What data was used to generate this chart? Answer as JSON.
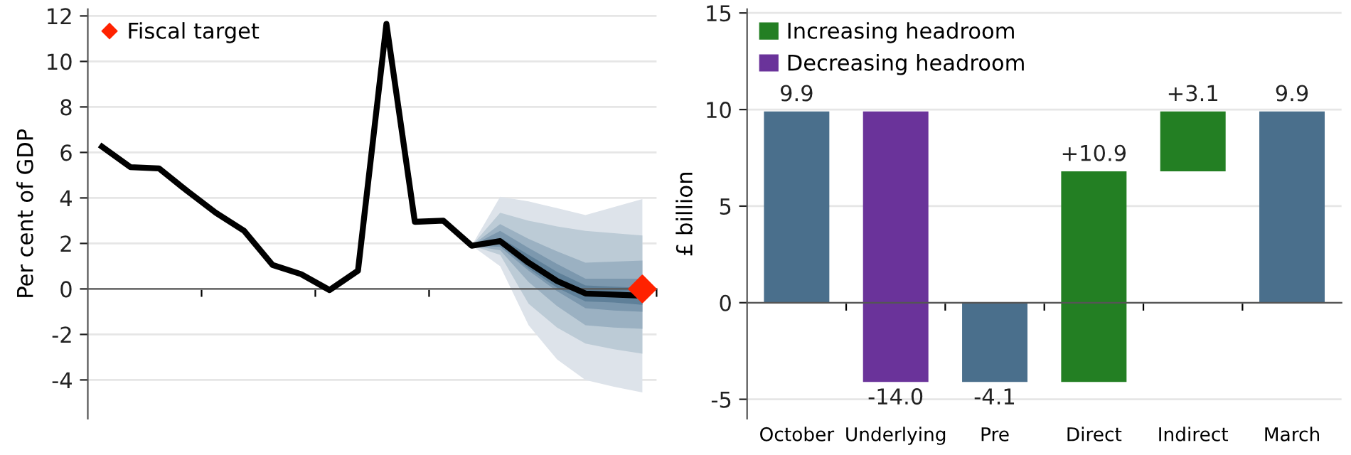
{
  "chart_data": [
    {
      "type": "line",
      "ylabel": "Per cent of GDP",
      "categories": [
        null,
        null,
        null,
        null,
        null,
        null,
        null,
        null,
        null,
        null,
        null,
        null,
        null,
        null,
        null,
        null,
        null,
        null,
        null,
        null
      ],
      "ylim": [
        -5.7,
        12.3
      ],
      "yticks": [
        12,
        10,
        8,
        6,
        4,
        2,
        0,
        -2,
        -4
      ],
      "grid": "y",
      "legend": "top left",
      "tick_labels": "y",
      "series": [
        {
          "color": "#dde3ea",
          "values": [
            null,
            null,
            null,
            null,
            null,
            null,
            null,
            null,
            null,
            null,
            null,
            null,
            null,
            null,
            null,
            null,
            null,
            null,
            null,
            null
          ],
          "lower": [
            null,
            null,
            null,
            null,
            null,
            null,
            null,
            null,
            null,
            null,
            null,
            null,
            null,
            1.9,
            1.0,
            -1.6,
            -3.1,
            -4.0,
            -4.3,
            -4.55
          ],
          "upper": [
            null,
            null,
            null,
            null,
            null,
            null,
            null,
            null,
            null,
            null,
            null,
            null,
            null,
            1.9,
            4.05,
            3.85,
            3.55,
            3.25,
            3.6,
            3.95
          ]
        },
        {
          "color": "#bccbd6",
          "values": [
            null,
            null,
            null,
            null,
            null,
            null,
            null,
            null,
            null,
            null,
            null,
            null,
            null,
            null,
            null,
            null,
            null,
            null,
            null,
            null
          ],
          "lower": [
            null,
            null,
            null,
            null,
            null,
            null,
            null,
            null,
            null,
            null,
            null,
            null,
            null,
            1.9,
            1.5,
            -0.65,
            -1.7,
            -2.4,
            -2.65,
            -2.85
          ],
          "upper": [
            null,
            null,
            null,
            null,
            null,
            null,
            null,
            null,
            null,
            null,
            null,
            null,
            null,
            1.9,
            3.35,
            3.0,
            2.75,
            2.55,
            2.45,
            2.35
          ]
        },
        {
          "color": "#9bb1c2",
          "values": [
            null,
            null,
            null,
            null,
            null,
            null,
            null,
            null,
            null,
            null,
            null,
            null,
            null,
            null,
            null,
            null,
            null,
            null,
            null,
            null
          ],
          "lower": [
            null,
            null,
            null,
            null,
            null,
            null,
            null,
            null,
            null,
            null,
            null,
            null,
            null,
            1.9,
            1.7,
            0.3,
            -0.75,
            -1.6,
            -1.7,
            -1.75
          ],
          "upper": [
            null,
            null,
            null,
            null,
            null,
            null,
            null,
            null,
            null,
            null,
            null,
            null,
            null,
            1.9,
            2.85,
            2.2,
            1.65,
            1.15,
            1.2,
            1.25
          ]
        },
        {
          "color": "#7c98ae",
          "values": [
            null,
            null,
            null,
            null,
            null,
            null,
            null,
            null,
            null,
            null,
            null,
            null,
            null,
            null,
            null,
            null,
            null,
            null,
            null,
            null
          ],
          "lower": [
            null,
            null,
            null,
            null,
            null,
            null,
            null,
            null,
            null,
            null,
            null,
            null,
            null,
            1.9,
            1.85,
            0.8,
            -0.1,
            -0.85,
            -0.95,
            -1.0
          ],
          "upper": [
            null,
            null,
            null,
            null,
            null,
            null,
            null,
            null,
            null,
            null,
            null,
            null,
            null,
            1.9,
            2.55,
            1.8,
            1.1,
            0.45,
            0.45,
            0.45
          ]
        },
        {
          "color": "#5f8099",
          "values": [
            null,
            null,
            null,
            null,
            null,
            null,
            null,
            null,
            null,
            null,
            null,
            null,
            null,
            null,
            null,
            null,
            null,
            null,
            null,
            null
          ],
          "lower": [
            null,
            null,
            null,
            null,
            null,
            null,
            null,
            null,
            null,
            null,
            null,
            null,
            null,
            1.9,
            1.95,
            0.9,
            0.05,
            -0.55,
            -0.6,
            -0.7
          ],
          "upper": [
            null,
            null,
            null,
            null,
            null,
            null,
            null,
            null,
            null,
            null,
            null,
            null,
            null,
            1.9,
            2.25,
            1.5,
            0.75,
            0.15,
            0.1,
            0.05
          ]
        },
        {
          "color": "#000000",
          "values": [
            6.25,
            5.35,
            5.3,
            4.3,
            3.35,
            2.55,
            1.05,
            0.65,
            -0.05,
            0.8,
            11.65,
            2.95,
            3.0,
            1.9,
            2.1,
            1.15,
            0.35,
            -0.2,
            -0.25,
            -0.3
          ]
        },
        {
          "name": "Fiscal target",
          "type": "scatter",
          "marker": "diamond",
          "color": "#ff2200",
          "values": [
            null,
            null,
            null,
            null,
            null,
            null,
            null,
            null,
            null,
            null,
            null,
            null,
            null,
            null,
            null,
            null,
            null,
            null,
            null,
            0
          ]
        }
      ]
    },
    {
      "type": "bar",
      "ylabel": "£ billion",
      "categories": [
        "October",
        "Underlying",
        "Pre",
        "Direct",
        "Indirect",
        "March"
      ],
      "ylim": [
        -6.0,
        15.2
      ],
      "yticks": [
        15,
        10,
        5,
        0,
        -5
      ],
      "grid": "y",
      "legend": "top left",
      "series": [
        {
          "color": "#4a6f8c",
          "base": [
            0,
            null,
            0,
            null,
            null,
            0
          ],
          "values": [
            9.9,
            null,
            -4.1,
            null,
            null,
            9.9
          ],
          "value_labels": [
            "9.9",
            null,
            "-4.1",
            null,
            null,
            "9.9"
          ]
        },
        {
          "name": "Increasing headroom",
          "color": "#237f23",
          "base": [
            null,
            null,
            null,
            -4.1,
            6.8,
            null
          ],
          "values": [
            null,
            null,
            null,
            10.9,
            3.1,
            null
          ],
          "value_labels": [
            null,
            null,
            null,
            "+10.9",
            "+3.1",
            null
          ]
        },
        {
          "name": "Decreasing headroom",
          "color": "#6a339a",
          "base": [
            null,
            9.9,
            null,
            null,
            null,
            null
          ],
          "values": [
            null,
            -14.0,
            null,
            null,
            null,
            null
          ],
          "value_labels": [
            null,
            "-14.0",
            null,
            null,
            null,
            null
          ]
        }
      ]
    }
  ]
}
